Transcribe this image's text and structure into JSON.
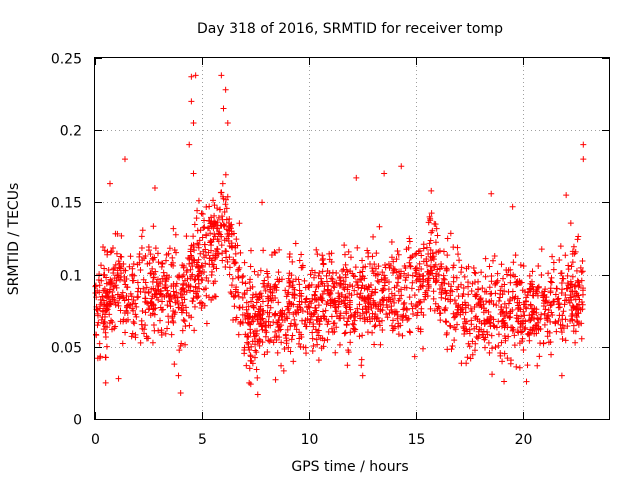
{
  "chart_data": {
    "type": "scatter",
    "title": "Day 318 of 2016, SRMTID for receiver tomp",
    "xlabel": "GPS time / hours",
    "ylabel": "SRMTID / TECUs",
    "xlim": [
      0,
      24
    ],
    "ylim": [
      0,
      0.25
    ],
    "xticks": [
      0,
      5,
      10,
      15,
      20
    ],
    "xtick_labels": [
      "0",
      "5",
      "10",
      "15",
      "20"
    ],
    "yticks": [
      0,
      0.05,
      0.1,
      0.15,
      0.2,
      0.25
    ],
    "ytick_labels": [
      "0",
      "0.05",
      "0.1",
      "0.15",
      "0.2",
      "0.25"
    ],
    "grid": true,
    "marker": "+",
    "color": "#ff0000",
    "baseline": [
      [
        0.0,
        0.075
      ],
      [
        0.5,
        0.085
      ],
      [
        1.0,
        0.095
      ],
      [
        1.5,
        0.085
      ],
      [
        2.0,
        0.085
      ],
      [
        2.5,
        0.09
      ],
      [
        3.0,
        0.09
      ],
      [
        3.5,
        0.09
      ],
      [
        4.0,
        0.085
      ],
      [
        4.5,
        0.1
      ],
      [
        5.0,
        0.11
      ],
      [
        5.5,
        0.12
      ],
      [
        6.0,
        0.135
      ],
      [
        6.5,
        0.1
      ],
      [
        7.0,
        0.07
      ],
      [
        7.5,
        0.065
      ],
      [
        8.0,
        0.075
      ],
      [
        9.0,
        0.075
      ],
      [
        10.0,
        0.08
      ],
      [
        11.0,
        0.085
      ],
      [
        12.0,
        0.08
      ],
      [
        13.0,
        0.085
      ],
      [
        14.0,
        0.085
      ],
      [
        15.0,
        0.09
      ],
      [
        15.7,
        0.11
      ],
      [
        16.5,
        0.085
      ],
      [
        17.5,
        0.075
      ],
      [
        18.5,
        0.08
      ],
      [
        19.5,
        0.075
      ],
      [
        20.5,
        0.075
      ],
      [
        21.5,
        0.08
      ],
      [
        22.0,
        0.09
      ],
      [
        22.8,
        0.085
      ]
    ],
    "highlights": [
      {
        "x": 4.5,
        "y": 0.237
      },
      {
        "x": 4.7,
        "y": 0.238
      },
      {
        "x": 5.9,
        "y": 0.238
      },
      {
        "x": 6.1,
        "y": 0.228
      },
      {
        "x": 4.5,
        "y": 0.22
      },
      {
        "x": 4.6,
        "y": 0.205
      },
      {
        "x": 6.0,
        "y": 0.215
      },
      {
        "x": 6.2,
        "y": 0.205
      },
      {
        "x": 4.4,
        "y": 0.19
      },
      {
        "x": 4.6,
        "y": 0.17
      },
      {
        "x": 1.4,
        "y": 0.18
      },
      {
        "x": 0.7,
        "y": 0.163
      },
      {
        "x": 13.5,
        "y": 0.17
      },
      {
        "x": 14.3,
        "y": 0.175
      },
      {
        "x": 12.2,
        "y": 0.167
      },
      {
        "x": 22.8,
        "y": 0.19
      },
      {
        "x": 22.8,
        "y": 0.18
      },
      {
        "x": 22.0,
        "y": 0.155
      },
      {
        "x": 18.5,
        "y": 0.156
      },
      {
        "x": 15.7,
        "y": 0.158
      },
      {
        "x": 2.8,
        "y": 0.16
      },
      {
        "x": 19.5,
        "y": 0.147
      },
      {
        "x": 7.8,
        "y": 0.15
      },
      {
        "x": 4.0,
        "y": 0.018
      },
      {
        "x": 7.6,
        "y": 0.017
      },
      {
        "x": 7.2,
        "y": 0.025
      },
      {
        "x": 0.5,
        "y": 0.025
      },
      {
        "x": 1.1,
        "y": 0.028
      },
      {
        "x": 3.9,
        "y": 0.03
      },
      {
        "x": 19.1,
        "y": 0.026
      },
      {
        "x": 21.8,
        "y": 0.03
      },
      {
        "x": 12.5,
        "y": 0.03
      }
    ],
    "point_count": 2200,
    "y_spread": 0.025,
    "y_min_observed": 0.016,
    "y_max_observed": 0.238
  }
}
